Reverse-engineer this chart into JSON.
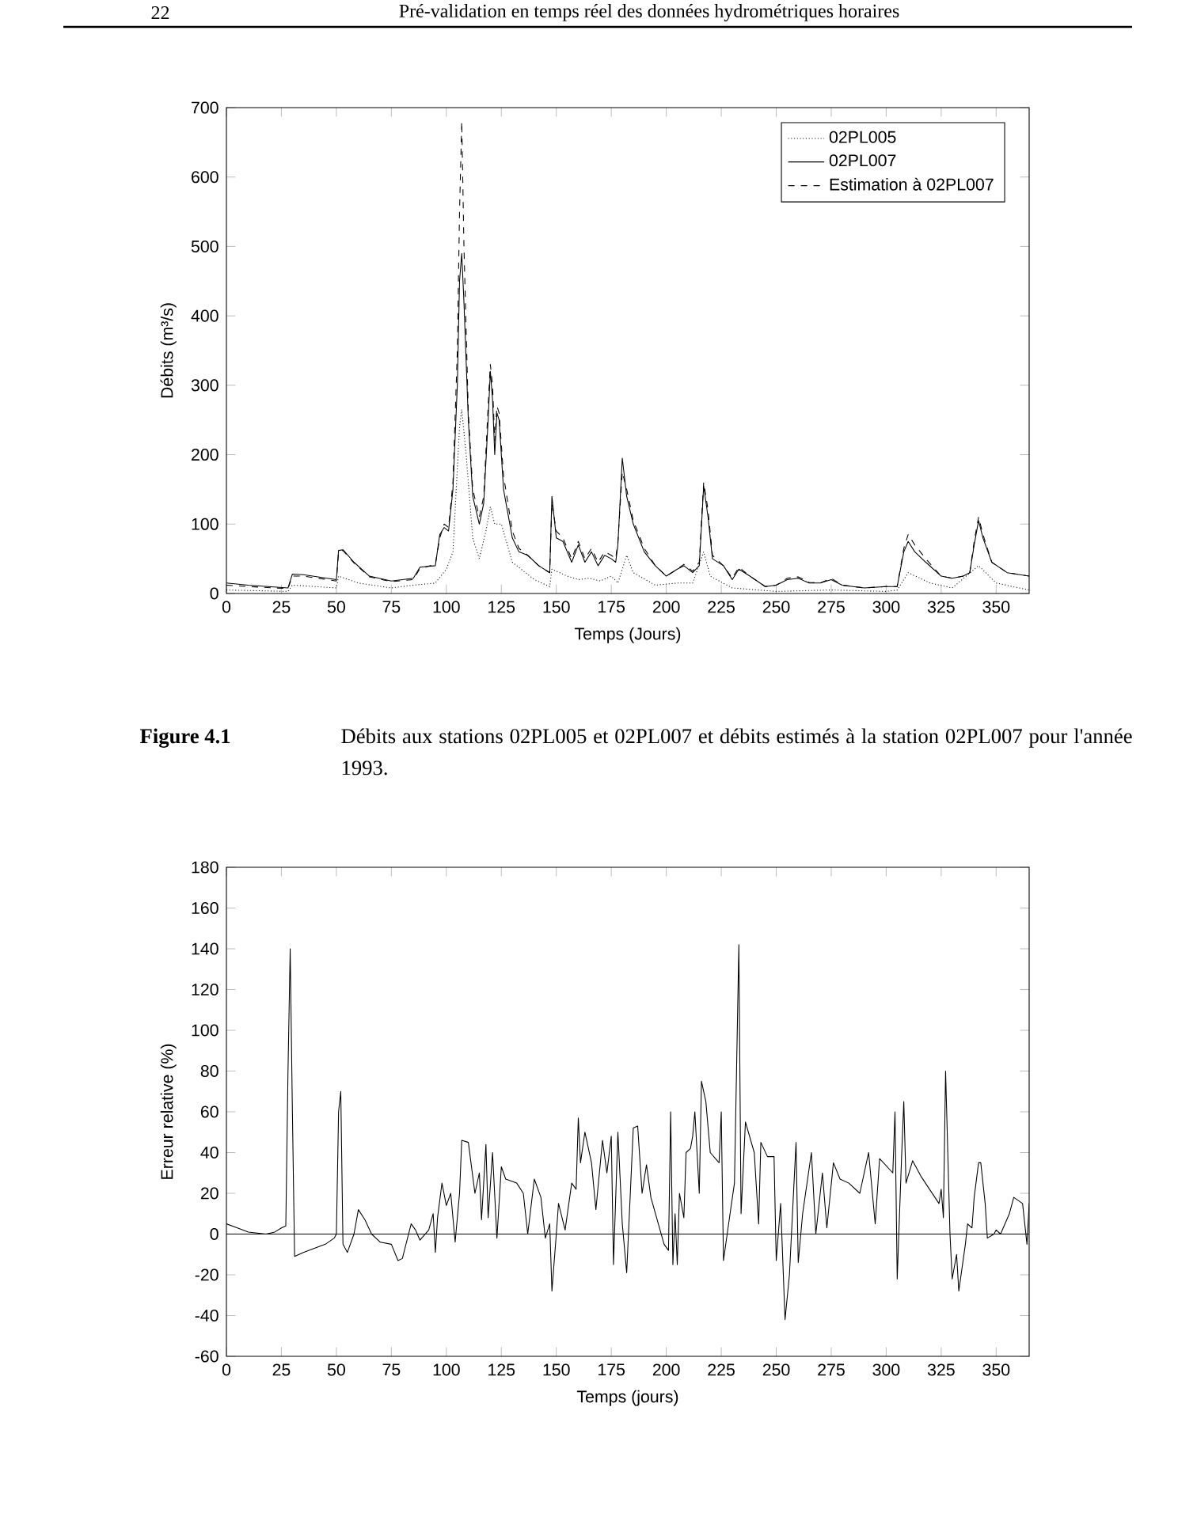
{
  "chart_data": [
    {
      "type": "line",
      "xlabel": "Temps (Jours)",
      "ylabel": "Débits (m³/s)",
      "xlim": [
        0,
        365
      ],
      "ylim": [
        0,
        700
      ],
      "xticks": [
        0,
        25,
        50,
        75,
        100,
        125,
        150,
        175,
        200,
        225,
        250,
        275,
        300,
        325,
        350
      ],
      "yticks": [
        0,
        100,
        200,
        300,
        400,
        500,
        600,
        700
      ],
      "legend": "top right",
      "marker": "none",
      "grid": false,
      "annotations": [
        "22",
        "Pré-validation en temps réel des données hydrométriques horaires",
        "Figure 4.1",
        "Débits aux stations 02PL005 et 02PL007 et débits estimés à la station 02PL007 pour l'année 1993."
      ],
      "series": [
        {
          "name": "02PL005",
          "color": "#000000",
          "line_style": "dotted",
          "x": [
            0,
            28,
            30,
            50,
            51,
            60,
            75,
            85,
            95,
            100,
            103,
            106,
            107,
            109,
            112,
            115,
            118,
            120,
            122,
            125,
            130,
            140,
            147,
            148,
            155,
            160,
            165,
            170,
            175,
            178,
            182,
            185,
            195,
            205,
            212,
            217,
            220,
            230,
            250,
            275,
            300,
            305,
            310,
            320,
            330,
            342,
            350,
            365
          ],
          "values": [
            5,
            3,
            12,
            8,
            25,
            15,
            8,
            12,
            15,
            35,
            60,
            240,
            265,
            200,
            80,
            50,
            90,
            125,
            100,
            100,
            45,
            20,
            10,
            35,
            25,
            20,
            22,
            18,
            25,
            15,
            55,
            30,
            12,
            15,
            15,
            60,
            25,
            8,
            3,
            5,
            3,
            5,
            30,
            15,
            8,
            40,
            15,
            5
          ]
        },
        {
          "name": "02PL007",
          "color": "#000000",
          "line_style": "solid",
          "x": [
            0,
            10,
            28,
            30,
            35,
            50,
            51,
            53,
            58,
            65,
            75,
            85,
            88,
            95,
            97,
            99,
            101,
            103,
            105,
            106,
            107,
            108,
            110,
            112,
            115,
            117,
            119,
            120,
            121,
            122,
            123,
            124,
            126,
            130,
            133,
            137,
            142,
            147,
            148,
            150,
            153,
            157,
            160,
            163,
            166,
            169,
            172,
            175,
            177,
            178,
            180,
            182,
            185,
            190,
            195,
            200,
            205,
            208,
            212,
            215,
            217,
            219,
            221,
            226,
            230,
            233,
            238,
            245,
            250,
            255,
            260,
            265,
            270,
            275,
            280,
            290,
            300,
            305,
            308,
            310,
            313,
            318,
            325,
            330,
            335,
            338,
            340,
            342,
            344,
            348,
            355,
            365
          ],
          "values": [
            15,
            12,
            8,
            28,
            27,
            20,
            62,
            63,
            45,
            25,
            18,
            22,
            38,
            40,
            85,
            95,
            90,
            150,
            300,
            450,
            490,
            420,
            250,
            140,
            100,
            130,
            250,
            320,
            280,
            200,
            260,
            250,
            150,
            80,
            60,
            55,
            40,
            30,
            140,
            80,
            75,
            45,
            70,
            45,
            60,
            40,
            55,
            50,
            45,
            70,
            195,
            140,
            100,
            60,
            40,
            25,
            35,
            40,
            30,
            40,
            155,
            110,
            50,
            40,
            20,
            35,
            25,
            10,
            12,
            20,
            22,
            15,
            15,
            20,
            12,
            8,
            10,
            10,
            60,
            75,
            60,
            45,
            25,
            22,
            25,
            30,
            70,
            105,
            80,
            45,
            30,
            25
          ]
        },
        {
          "name": "Estimation à 02PL007",
          "color": "#000000",
          "line_style": "dashed",
          "x": [
            0,
            10,
            28,
            30,
            35,
            50,
            51,
            53,
            58,
            65,
            75,
            85,
            88,
            95,
            97,
            99,
            101,
            103,
            105,
            106,
            107,
            108,
            110,
            112,
            115,
            117,
            119,
            120,
            121,
            122,
            123,
            124,
            126,
            130,
            133,
            137,
            142,
            147,
            148,
            150,
            153,
            157,
            160,
            163,
            166,
            169,
            172,
            175,
            177,
            178,
            180,
            182,
            185,
            190,
            195,
            200,
            205,
            208,
            212,
            215,
            217,
            219,
            221,
            226,
            230,
            233,
            238,
            245,
            250,
            255,
            260,
            265,
            270,
            275,
            280,
            290,
            300,
            305,
            308,
            310,
            313,
            318,
            325,
            330,
            335,
            338,
            340,
            342,
            344,
            348,
            355,
            365
          ],
          "values": [
            12,
            10,
            7,
            25,
            25,
            18,
            60,
            62,
            44,
            24,
            17,
            20,
            36,
            42,
            80,
            100,
            95,
            160,
            350,
            550,
            680,
            500,
            260,
            150,
            110,
            140,
            270,
            330,
            300,
            220,
            270,
            260,
            170,
            90,
            65,
            55,
            40,
            30,
            130,
            90,
            80,
            50,
            75,
            50,
            65,
            45,
            60,
            55,
            50,
            75,
            175,
            150,
            105,
            65,
            40,
            25,
            35,
            42,
            32,
            45,
            160,
            120,
            55,
            40,
            22,
            38,
            25,
            10,
            12,
            22,
            24,
            16,
            15,
            22,
            12,
            8,
            10,
            10,
            65,
            85,
            70,
            50,
            25,
            22,
            25,
            30,
            75,
            110,
            85,
            45,
            30,
            25
          ]
        }
      ]
    },
    {
      "type": "line",
      "xlabel": "Temps (jours)",
      "ylabel": "Erreur relative (%)",
      "xlim": [
        0,
        365
      ],
      "ylim": [
        -60,
        180
      ],
      "xticks": [
        0,
        25,
        50,
        75,
        100,
        125,
        150,
        175,
        200,
        225,
        250,
        275,
        300,
        325,
        350
      ],
      "yticks": [
        -60,
        -40,
        -20,
        0,
        20,
        40,
        60,
        80,
        100,
        120,
        140,
        160,
        180
      ],
      "legend": false,
      "marker": "none",
      "grid": false,
      "ref_lines": [
        {
          "axis": "y",
          "value": 0
        }
      ],
      "series": [
        {
          "color": "#000000",
          "line_style": "solid",
          "x": [
            0,
            5,
            10,
            18,
            22,
            25,
            27,
            28,
            29,
            30,
            31,
            35,
            40,
            45,
            49,
            50,
            51,
            52,
            53,
            55,
            58,
            60,
            63,
            66,
            70,
            75,
            78,
            80,
            84,
            86,
            88,
            92,
            94,
            95,
            96,
            98,
            100,
            102,
            104,
            106,
            107,
            110,
            113,
            115,
            116,
            118,
            119,
            121,
            123,
            125,
            127,
            132,
            135,
            137,
            140,
            143,
            145,
            147,
            148,
            150,
            151,
            154,
            157,
            159,
            160,
            161,
            163,
            166,
            168,
            171,
            173,
            175,
            176,
            178,
            180,
            182,
            185,
            187,
            189,
            191,
            193,
            199,
            201,
            202,
            203,
            204,
            205,
            206,
            208,
            209,
            211,
            212,
            213,
            215,
            216,
            218,
            220,
            224,
            225,
            226,
            229,
            231,
            233,
            234,
            236,
            240,
            242,
            243,
            246,
            249,
            250,
            252,
            254,
            256,
            259,
            260,
            262,
            266,
            268,
            271,
            273,
            276,
            279,
            283,
            288,
            292,
            295,
            297,
            303,
            304,
            305,
            307,
            308,
            309,
            312,
            316,
            324,
            325,
            326,
            327,
            329,
            330,
            332,
            333,
            336,
            337,
            339,
            340,
            342,
            343,
            345,
            346,
            349,
            350,
            352,
            356,
            358,
            362,
            364,
            365
          ],
          "values": [
            5,
            3,
            1,
            0,
            1,
            3,
            4,
            80,
            140,
            60,
            -11,
            -9,
            -7,
            -5,
            -2,
            0,
            60,
            70,
            -5,
            -9,
            0,
            12,
            7,
            0,
            -4,
            -5,
            -13,
            -12,
            5,
            2,
            -3,
            2,
            10,
            -9,
            8,
            25,
            14,
            20,
            -4,
            20,
            46,
            45,
            20,
            30,
            7,
            44,
            8,
            40,
            -2,
            33,
            27,
            25,
            20,
            0,
            27,
            18,
            -2,
            5,
            -28,
            0,
            15,
            2,
            25,
            22,
            57,
            35,
            50,
            35,
            12,
            46,
            30,
            48,
            -15,
            50,
            5,
            -19,
            52,
            53,
            20,
            34,
            18,
            -5,
            -8,
            60,
            -15,
            10,
            -15,
            20,
            8,
            40,
            42,
            48,
            60,
            20,
            75,
            65,
            40,
            35,
            60,
            -13,
            10,
            25,
            142,
            10,
            55,
            40,
            5,
            45,
            38,
            38,
            -13,
            15,
            -42,
            -20,
            45,
            -14,
            10,
            40,
            0,
            30,
            3,
            35,
            27,
            25,
            20,
            40,
            5,
            37,
            30,
            60,
            -22,
            38,
            65,
            25,
            36,
            28,
            15,
            22,
            8,
            80,
            0,
            -22,
            -10,
            -28,
            -5,
            5,
            3,
            18,
            35,
            35,
            15,
            -2,
            0,
            2,
            0,
            10,
            18,
            15,
            -5,
            15
          ]
        }
      ]
    }
  ]
}
